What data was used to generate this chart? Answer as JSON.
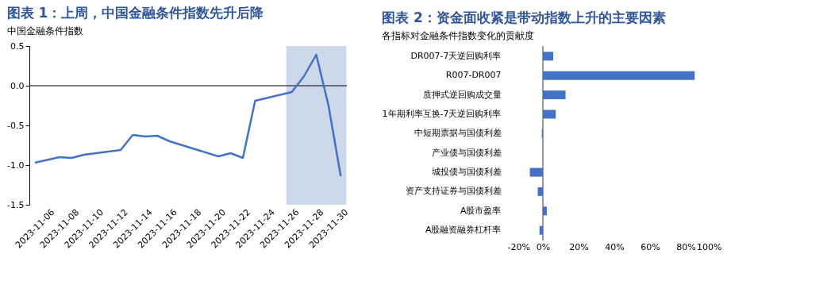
{
  "chart_data": [
    {
      "type": "line",
      "title": "图表 1：上周，中国金融条件指数先升后降",
      "subtitle": "中国金融条件指数",
      "x": [
        "2023-11-06",
        "2023-11-08",
        "2023-11-09",
        "2023-11-10",
        "2023-11-13",
        "2023-11-14",
        "2023-11-15",
        "2023-11-16",
        "2023-11-17",
        "2023-11-21",
        "2023-11-22",
        "2023-11-23",
        "2023-11-24",
        "2023-11-27",
        "2023-11-28",
        "2023-11-29",
        "2023-11-30",
        "2023-12-01"
      ],
      "series": [
        {
          "color": "#4472c4",
          "values": [
            -0.97,
            -0.9,
            -0.91,
            -0.87,
            -0.81,
            -0.62,
            -0.64,
            -0.63,
            -0.7,
            -0.89,
            -0.85,
            -0.91,
            -0.19,
            -0.08,
            0.12,
            0.39,
            -0.25,
            -1.14
          ]
        }
      ],
      "xlim": [
        "2023-11-05T13:00",
        "2023-12-01T12:00"
      ],
      "xticks": [
        "2023-11-06",
        "2023-11-08",
        "2023-11-10",
        "2023-11-12",
        "2023-11-14",
        "2023-11-16",
        "2023-11-18",
        "2023-11-20",
        "2023-11-22",
        "2023-11-24",
        "2023-11-26",
        "2023-11-28",
        "2023-11-30"
      ],
      "ylim": [
        -1.5,
        0.5
      ],
      "yticks": [
        0.5,
        {
          "value": 0,
          "label": "0.0"
        },
        -0.5,
        {
          "value": -1,
          "label": "-1.0"
        },
        -1.5
      ],
      "ref_lines": [
        {
          "axis": "y",
          "value": 0,
          "color": "#000000"
        }
      ],
      "bands": [
        {
          "axis": "x",
          "from": "2023-11-26T13:00",
          "to": "2023-12-01T11:00",
          "color": "#cdd8ea"
        }
      ]
    },
    {
      "type": "bar",
      "orientation": "horizontal",
      "title": "图表 2：资金面收紧是带动指数上升的主要因素",
      "subtitle": "各指标对金融条件指数变化的贡献度",
      "categories": [
        "DR007-7天逆回购利率",
        "R007-DR007",
        "质押式逆回购成交量",
        "1年期利率互换-7天逆回购利率",
        "中短期票据与国债利差",
        "产业债与国债利差",
        "城投债与国债利差",
        "资产支持证券与国债利差",
        "A股市盈率",
        "A股融资融券杠杆率"
      ],
      "values": [
        5.8,
        85,
        12.7,
        7.2,
        -0.6,
        0,
        -7.3,
        -2.9,
        2.2,
        -1.9
      ],
      "color": "#4472c4",
      "xlim": [
        -20,
        100
      ],
      "xticks": [
        {
          "value": -20,
          "label": "-20%"
        },
        {
          "value": 0,
          "label": "0%"
        },
        {
          "value": 20,
          "label": "20%"
        },
        {
          "value": 40,
          "label": "40%"
        },
        {
          "value": 60,
          "label": "60%"
        },
        {
          "value": 80,
          "label": "80%"
        },
        {
          "value": 100,
          "label": "100%"
        }
      ],
      "ref_lines": [
        {
          "axis": "x",
          "value": 0,
          "color": "#000000"
        }
      ]
    }
  ]
}
